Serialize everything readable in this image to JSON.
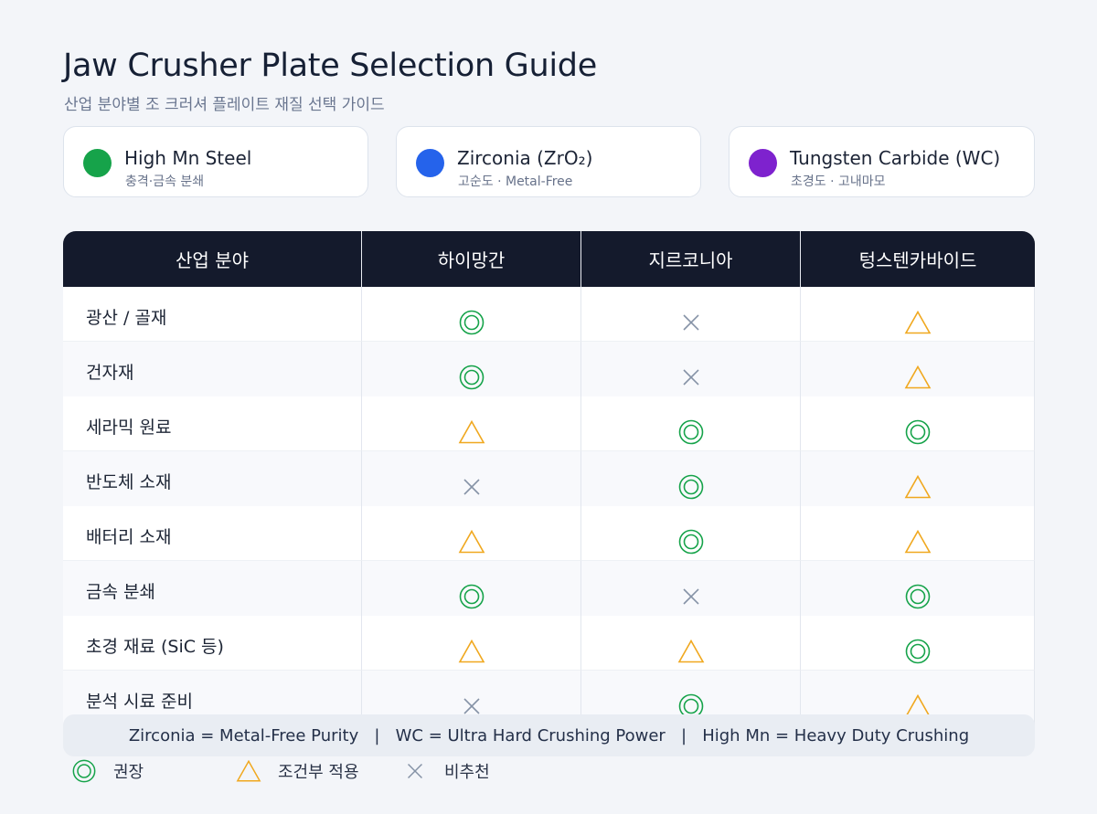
{
  "title": "Jaw Crusher Plate Selection Guide",
  "subtitle": "산업 분야별 조 크러셔 플레이트 재질 선택 가이드",
  "materials": [
    {
      "name": "High Mn Steel",
      "desc": "충격·금속 분쇄",
      "color": "#16a34a"
    },
    {
      "name": "Zirconia (ZrO₂)",
      "desc": "고순도 · Metal-Free",
      "color": "#2563eb"
    },
    {
      "name": "Tungsten Carbide (WC)",
      "desc": "초경도 · 고내마모",
      "color": "#7e22ce"
    }
  ],
  "table": {
    "headers": [
      "산업 분야",
      "하이망간",
      "지르코니아",
      "텅스텐카바이드"
    ],
    "rows": [
      {
        "label": "광산 / 골재",
        "marks": [
          "double-circle",
          "cross",
          "triangle"
        ]
      },
      {
        "label": "건자재",
        "marks": [
          "double-circle",
          "cross",
          "triangle"
        ]
      },
      {
        "label": "세라믹 원료",
        "marks": [
          "triangle",
          "double-circle",
          "double-circle"
        ]
      },
      {
        "label": "반도체 소재",
        "marks": [
          "cross",
          "double-circle",
          "triangle"
        ]
      },
      {
        "label": "배터리 소재",
        "marks": [
          "triangle",
          "double-circle",
          "triangle"
        ]
      },
      {
        "label": "금속 분쇄",
        "marks": [
          "double-circle",
          "cross",
          "double-circle"
        ]
      },
      {
        "label": "초경 재료 (SiC 등)",
        "marks": [
          "triangle",
          "triangle",
          "double-circle"
        ]
      },
      {
        "label": "분석 시료 준비",
        "marks": [
          "cross",
          "double-circle",
          "triangle"
        ]
      }
    ]
  },
  "note": "Zirconia = Metal-Free Purity   |   WC = Ultra Hard Crushing Power   |   High Mn = Heavy Duty Crushing",
  "legend": [
    {
      "icon": "double-circle",
      "label": "권장"
    },
    {
      "icon": "triangle",
      "label": "조건부 적용"
    },
    {
      "icon": "cross",
      "label": "비추천"
    }
  ],
  "colors": {
    "recommended": "#16a34a",
    "conditional": "#f0a81f",
    "not_recommended": "#8592a6"
  }
}
